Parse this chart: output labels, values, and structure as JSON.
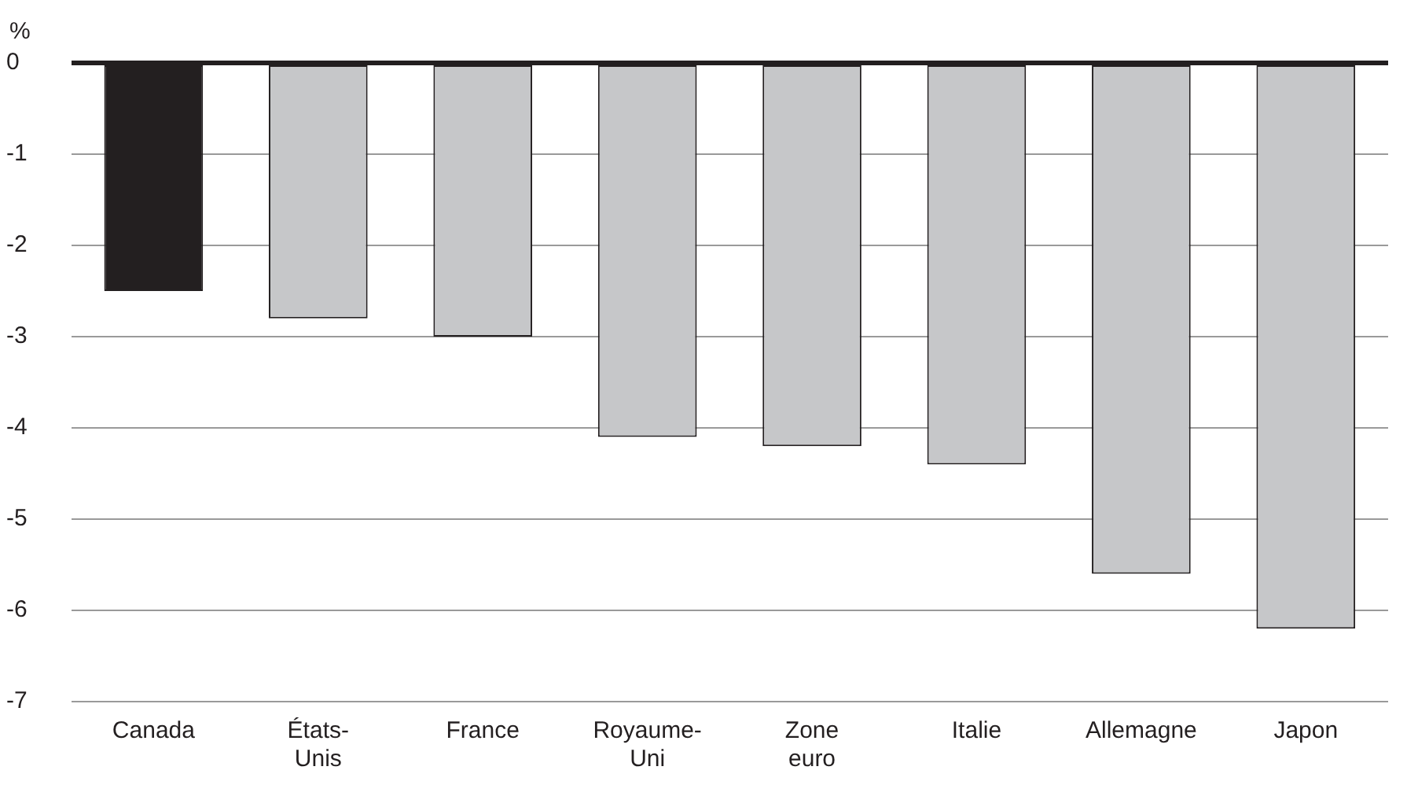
{
  "chart_data": {
    "type": "bar",
    "ylabel": "%",
    "categories": [
      "Canada",
      "États-Unis",
      "France",
      "Royaume-Uni",
      "Zone euro",
      "Italie",
      "Allemagne",
      "Japon"
    ],
    "values": [
      -2.5,
      -2.8,
      -3.0,
      -4.1,
      -4.2,
      -4.4,
      -5.6,
      -6.2
    ],
    "colors": [
      "#231f20",
      "#c6c7c9",
      "#c6c7c9",
      "#c6c7c9",
      "#c6c7c9",
      "#c6c7c9",
      "#c6c7c9",
      "#c6c7c9"
    ],
    "ylim": [
      -7,
      0
    ],
    "yticks": [
      0,
      -1,
      -2,
      -3,
      -4,
      -5,
      -6,
      -7
    ],
    "grid": "y"
  }
}
